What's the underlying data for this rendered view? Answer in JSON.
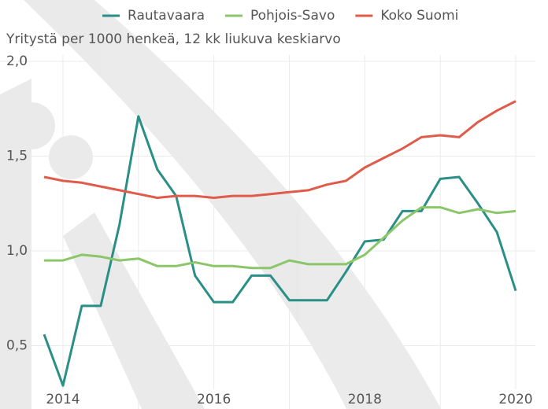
{
  "chart_data": {
    "type": "line",
    "subtitle": "Yritystä per 1000 henkeä, 12 kk liukuva keskiarvo",
    "x": [
      2013.75,
      2014.0,
      2014.25,
      2014.5,
      2014.75,
      2015.0,
      2015.25,
      2015.5,
      2015.75,
      2016.0,
      2016.25,
      2016.5,
      2016.75,
      2017.0,
      2017.25,
      2017.5,
      2017.75,
      2018.0,
      2018.25,
      2018.5,
      2018.75,
      2019.0,
      2019.25,
      2019.5,
      2019.75,
      2020.0
    ],
    "series": [
      {
        "name": "Rautavaara",
        "color": "#2a8f86",
        "values": [
          0.56,
          0.29,
          0.71,
          0.71,
          1.14,
          1.71,
          1.43,
          1.29,
          0.87,
          0.73,
          0.73,
          0.87,
          0.87,
          0.74,
          0.74,
          0.74,
          0.89,
          1.05,
          1.06,
          1.21,
          1.21,
          1.38,
          1.39,
          1.25,
          1.1,
          0.79
        ]
      },
      {
        "name": "Pohjois-Savo",
        "color": "#8cc66a",
        "values": [
          0.95,
          0.95,
          0.98,
          0.97,
          0.95,
          0.96,
          0.92,
          0.92,
          0.94,
          0.92,
          0.92,
          0.91,
          0.91,
          0.95,
          0.93,
          0.93,
          0.93,
          0.98,
          1.07,
          1.16,
          1.23,
          1.23,
          1.2,
          1.22,
          1.2,
          1.21
        ]
      },
      {
        "name": "Koko Suomi",
        "color": "#e05b4a",
        "values": [
          1.39,
          1.37,
          1.36,
          1.34,
          1.32,
          1.3,
          1.28,
          1.29,
          1.29,
          1.28,
          1.29,
          1.29,
          1.3,
          1.31,
          1.32,
          1.35,
          1.37,
          1.44,
          1.49,
          1.54,
          1.6,
          1.61,
          1.6,
          1.68,
          1.74,
          1.79
        ]
      }
    ],
    "xlim": [
      2013.75,
      2020.0
    ],
    "xticks": [
      2014,
      2016,
      2018,
      2020
    ],
    "x_minor_grid": [
      2015,
      2017,
      2019
    ],
    "ylim": [
      0.27,
      2.0
    ],
    "yticks": [
      {
        "value": 0.5,
        "label": "0,5"
      },
      {
        "value": 1.0,
        "label": "1,0"
      },
      {
        "value": 1.5,
        "label": "1,5"
      },
      {
        "value": 2.0,
        "label": "2,0"
      }
    ],
    "grid": true,
    "legend": "top"
  }
}
